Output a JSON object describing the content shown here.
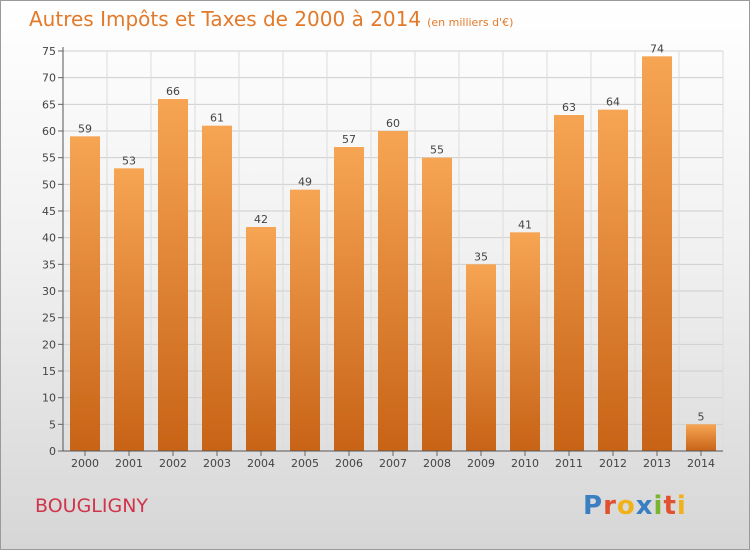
{
  "title": "Autres Impôts et Taxes de 2000 à 2014",
  "unit": "(en milliers d'€)",
  "town": "BOUGLIGNY",
  "logo": {
    "letters": [
      "P",
      "r",
      "o",
      "x",
      "i",
      "t",
      "i"
    ],
    "colors": [
      "#3a7fc1",
      "#e0522f",
      "#f0b21a",
      "#3a7fc1",
      "#7ab52f",
      "#e0522f",
      "#f0b21a"
    ]
  },
  "colors": {
    "bar_top": "#f6a553",
    "bar_bottom": "#c86316",
    "title": "#e27a2a",
    "town": "#d0344a"
  },
  "chart_data": {
    "type": "bar",
    "categories": [
      "2000",
      "2001",
      "2002",
      "2003",
      "2004",
      "2005",
      "2006",
      "2007",
      "2008",
      "2009",
      "2010",
      "2011",
      "2012",
      "2013",
      "2014"
    ],
    "values": [
      59,
      53,
      66,
      61,
      42,
      49,
      57,
      60,
      55,
      35,
      41,
      63,
      64,
      74,
      5
    ],
    "ylim": [
      0,
      75
    ],
    "yticks": [
      0,
      5,
      10,
      15,
      20,
      25,
      30,
      35,
      40,
      45,
      50,
      55,
      60,
      65,
      70,
      75
    ],
    "grid": true,
    "data_labels": true
  }
}
